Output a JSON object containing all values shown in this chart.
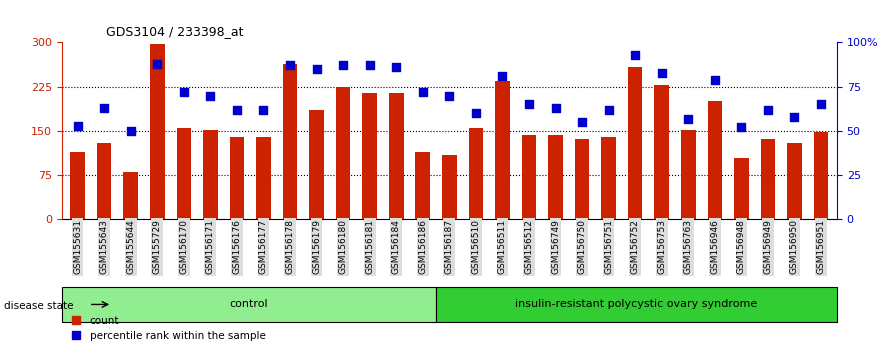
{
  "title": "GDS3104 / 233398_at",
  "samples": [
    "GSM155631",
    "GSM155643",
    "GSM155644",
    "GSM155729",
    "GSM156170",
    "GSM156171",
    "GSM156176",
    "GSM156177",
    "GSM156178",
    "GSM156179",
    "GSM156180",
    "GSM156181",
    "GSM156184",
    "GSM156186",
    "GSM156187",
    "GSM156510",
    "GSM156511",
    "GSM156512",
    "GSM156749",
    "GSM156750",
    "GSM156751",
    "GSM156752",
    "GSM156753",
    "GSM156763",
    "GSM156946",
    "GSM156948",
    "GSM156949",
    "GSM156950",
    "GSM156951"
  ],
  "counts": [
    115,
    130,
    80,
    297,
    155,
    152,
    140,
    140,
    263,
    185,
    225,
    215,
    215,
    115,
    110,
    155,
    235,
    143,
    143,
    137,
    140,
    258,
    228,
    152,
    200,
    105,
    137,
    130,
    148
  ],
  "percentiles": [
    53,
    63,
    50,
    88,
    72,
    70,
    62,
    62,
    87,
    85,
    87,
    87,
    86,
    72,
    70,
    60,
    81,
    65,
    63,
    55,
    62,
    93,
    83,
    57,
    79,
    52,
    62,
    58,
    65
  ],
  "n_control": 14,
  "control_label": "control",
  "disease_label": "insulin-resistant polycystic ovary syndrome",
  "bar_color": "#cc2200",
  "dot_color": "#0000cc",
  "ylim_left": [
    0,
    300
  ],
  "ylim_right": [
    0,
    100
  ],
  "yticks_left": [
    0,
    75,
    150,
    225,
    300
  ],
  "yticks_right": [
    0,
    25,
    50,
    75,
    100
  ],
  "ytick_labels_right": [
    "0",
    "25",
    "50",
    "75",
    "100%"
  ],
  "hline_values": [
    75,
    150,
    225
  ],
  "background_color": "#ffffff",
  "legend_count_label": "count",
  "legend_pct_label": "percentile rank within the sample"
}
